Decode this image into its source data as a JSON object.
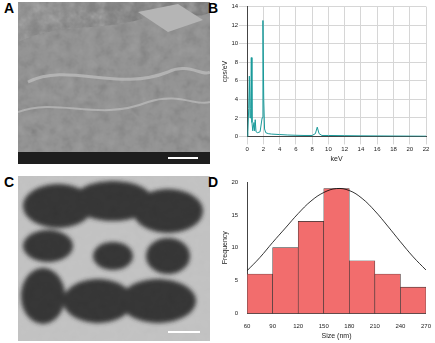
{
  "panel_labels": [
    "A",
    "B",
    "C",
    "D"
  ],
  "chart_data": [
    {
      "type": "line",
      "x_label": "keV",
      "y_label": "cps/eV",
      "x": [
        0,
        0.1,
        0.2,
        0.28,
        0.36,
        0.45,
        0.52,
        0.6,
        0.7,
        0.85,
        0.93,
        1.0,
        1.1,
        1.3,
        1.6,
        1.85,
        1.95,
        2.05,
        2.15,
        2.3,
        2.6,
        3,
        4,
        5,
        6,
        7,
        8,
        8.4,
        8.63,
        8.85,
        9.2,
        10,
        12,
        14,
        16,
        18,
        20,
        22
      ],
      "values": [
        0,
        0.5,
        3,
        6.5,
        2,
        3,
        8.5,
        1.5,
        0.6,
        1.5,
        0.6,
        1.8,
        0.5,
        0.4,
        0.5,
        2,
        12.5,
        4,
        0.8,
        0.4,
        0.3,
        0.25,
        0.2,
        0.15,
        0.12,
        0.1,
        0.1,
        0.3,
        1,
        0.3,
        0.1,
        0.1,
        0.08,
        0.06,
        0.05,
        0.04,
        0.03,
        0.02
      ],
      "color": "#1a9a9a",
      "xlim": [
        0,
        22
      ],
      "xticks": [
        0,
        2,
        4,
        6,
        8,
        10,
        12,
        14,
        16,
        18,
        20,
        22
      ],
      "ylim": [
        0,
        14
      ],
      "yticks": [
        0,
        2,
        4,
        6,
        8,
        10,
        12,
        14
      ],
      "grid": true
    },
    {
      "type": "histogram",
      "x_label": "Size (nm)",
      "y_label": "Frequency",
      "bins": [
        60,
        90,
        120,
        150,
        180,
        210,
        240,
        270
      ],
      "values": [
        6,
        10,
        14,
        19,
        8,
        6,
        4
      ],
      "color": "#f26d6d",
      "fit": {
        "x": [
          60,
          75,
          90,
          105,
          120,
          135,
          150,
          165,
          180,
          195,
          210,
          225,
          240,
          255,
          270
        ],
        "values": [
          6.5,
          8.5,
          10.8,
          13,
          15.2,
          17.1,
          18.4,
          19,
          18.7,
          17.5,
          15.6,
          13.3,
          10.9,
          8.6,
          6.6
        ],
        "color": "#000000"
      },
      "xlim": [
        60,
        270
      ],
      "xticks": [
        60,
        90,
        120,
        150,
        180,
        210,
        240,
        270
      ],
      "ylim": [
        0,
        20
      ],
      "yticks": [
        0,
        5,
        10,
        15,
        20
      ],
      "grid": false
    }
  ]
}
